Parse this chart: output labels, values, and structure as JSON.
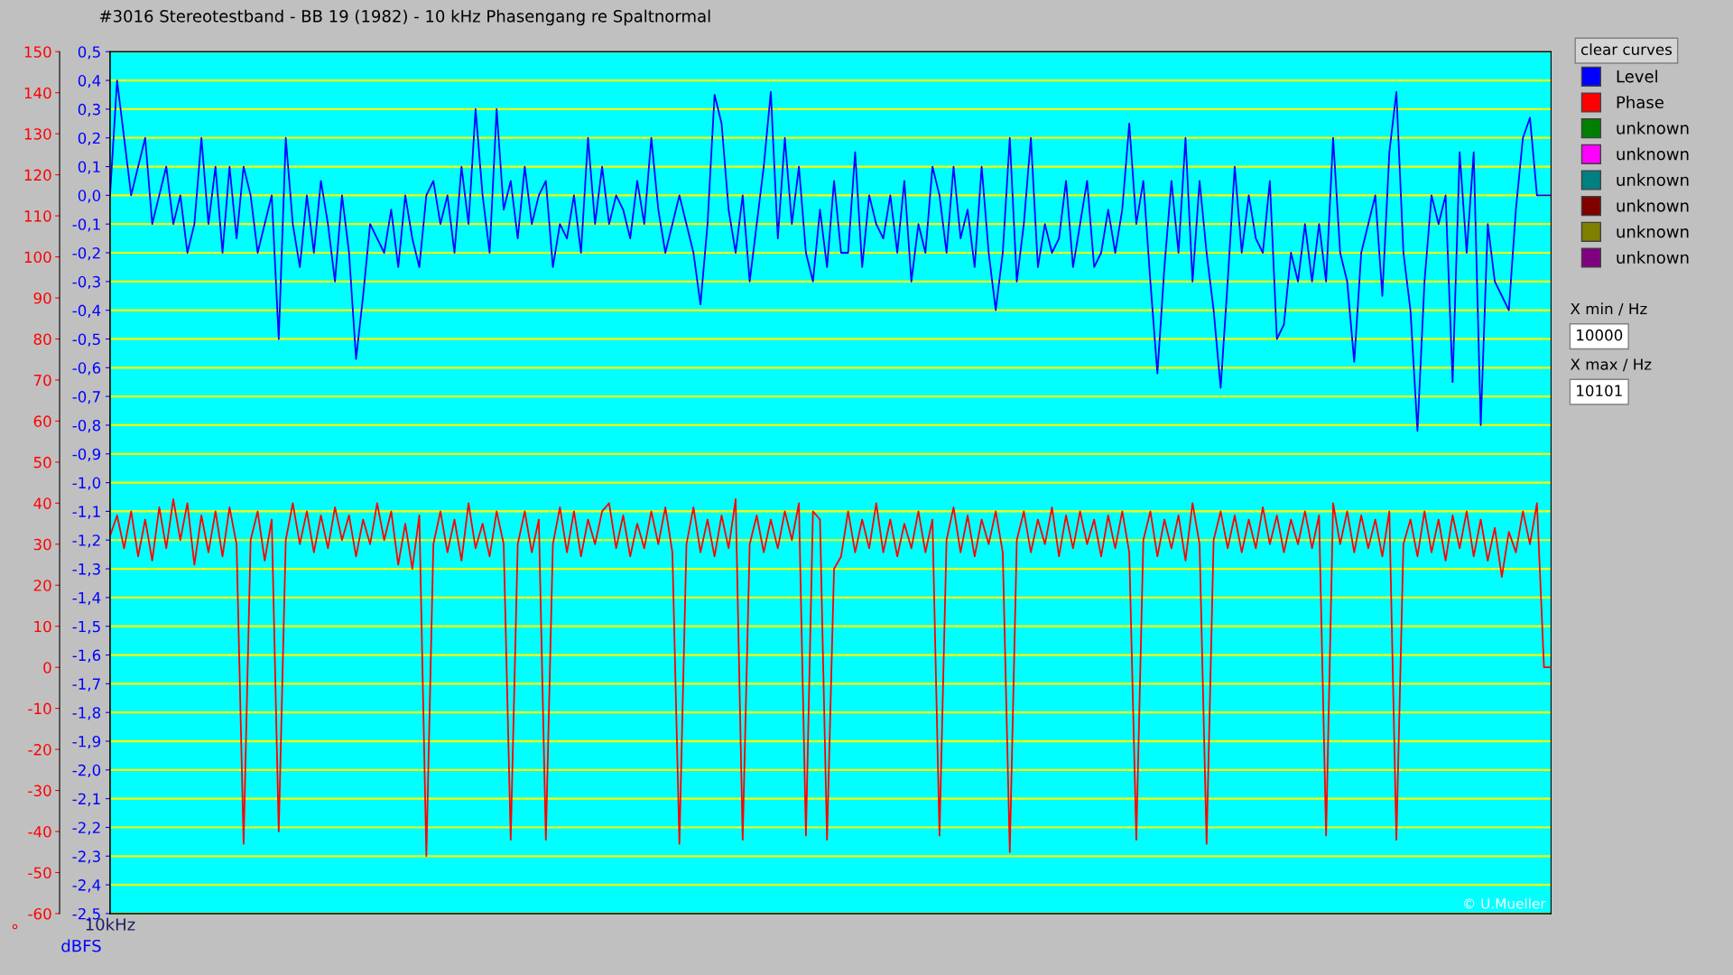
{
  "chart_data": {
    "type": "line",
    "title": "#3016 Stereotestband - BB 19 (1982) - 10 kHz Phasengang re Spaltnormal",
    "ylabel": "dBFS",
    "y2label": "°",
    "categories": [
      "10kHz",
      null,
      null,
      null,
      null,
      null,
      null,
      null,
      null,
      null,
      null,
      null,
      null,
      null,
      null,
      null,
      null,
      null,
      null,
      null,
      null,
      null,
      null,
      null,
      null,
      null,
      null,
      null,
      null,
      null,
      null,
      null,
      null,
      null,
      null,
      null,
      null,
      null,
      null,
      null,
      null,
      null,
      null,
      null,
      null,
      null,
      null,
      null,
      null,
      null,
      null,
      null,
      null,
      null,
      null,
      null,
      null,
      null,
      null,
      null,
      null,
      null,
      null,
      null,
      null,
      null,
      null,
      null,
      null,
      null,
      null,
      null,
      null,
      null,
      null,
      null,
      null,
      null,
      null,
      null,
      null,
      null,
      null,
      null,
      null,
      null,
      null,
      null,
      null,
      null,
      null,
      null,
      null,
      null,
      null,
      null,
      null,
      null,
      null,
      null,
      null,
      null,
      null,
      null,
      null,
      null,
      null,
      null,
      null,
      null,
      null,
      null,
      null,
      null,
      null,
      null,
      null,
      null,
      null,
      null,
      null,
      null,
      null,
      null,
      null,
      null,
      null,
      null,
      null,
      null,
      null,
      null,
      null,
      null,
      null,
      null,
      null,
      null,
      null,
      null,
      null,
      null,
      null,
      null,
      null,
      null,
      null,
      null,
      null,
      null,
      null,
      null,
      null,
      null,
      null,
      null,
      null,
      null,
      null,
      null,
      null,
      null,
      null,
      null,
      null,
      null,
      null,
      null,
      null,
      null,
      null,
      null,
      null,
      null,
      null,
      null,
      null,
      null,
      null,
      null,
      null,
      null,
      null,
      null,
      null,
      null,
      null,
      null,
      null,
      null,
      null,
      null,
      null,
      null,
      null,
      null,
      null,
      null,
      null,
      null,
      null,
      null,
      null,
      null,
      null,
      null
    ],
    "ylim": [
      -2.5,
      0.5
    ],
    "yticks": [
      {
        "value": 0.5,
        "label": "0,5"
      },
      {
        "value": 0.4,
        "label": "0,4"
      },
      {
        "value": 0.3,
        "label": "0,3"
      },
      {
        "value": 0.2,
        "label": "0,2"
      },
      {
        "value": 0.1,
        "label": "0,1"
      },
      {
        "value": 0.0,
        "label": "0,0"
      },
      {
        "value": -0.1,
        "label": "-0,1"
      },
      {
        "value": -0.2,
        "label": "-0,2"
      },
      {
        "value": -0.3,
        "label": "-0,3"
      },
      {
        "value": -0.4,
        "label": "-0,4"
      },
      {
        "value": -0.5,
        "label": "-0,5"
      },
      {
        "value": -0.6,
        "label": "-0,6"
      },
      {
        "value": -0.7,
        "label": "-0,7"
      },
      {
        "value": -0.8,
        "label": "-0,8"
      },
      {
        "value": -0.9,
        "label": "-0,9"
      },
      {
        "value": -1.0,
        "label": "-1,0"
      },
      {
        "value": -1.1,
        "label": "-1,1"
      },
      {
        "value": -1.2,
        "label": "-1,2"
      },
      {
        "value": -1.3,
        "label": "-1,3"
      },
      {
        "value": -1.4,
        "label": "-1,4"
      },
      {
        "value": -1.5,
        "label": "-1,5"
      },
      {
        "value": -1.6,
        "label": "-1,6"
      },
      {
        "value": -1.7,
        "label": "-1,7"
      },
      {
        "value": -1.8,
        "label": "-1,8"
      },
      {
        "value": -1.9,
        "label": "-1,9"
      },
      {
        "value": -2.0,
        "label": "-2,0"
      },
      {
        "value": -2.1,
        "label": "-2,1"
      },
      {
        "value": -2.2,
        "label": "-2,2"
      },
      {
        "value": -2.3,
        "label": "-2,3"
      },
      {
        "value": -2.4,
        "label": "-2,4"
      },
      {
        "value": -2.5,
        "label": "-2,5"
      }
    ],
    "y2lim": [
      -60,
      150
    ],
    "y2ticks": [
      150,
      140,
      130,
      120,
      110,
      100,
      90,
      80,
      70,
      60,
      50,
      40,
      30,
      20,
      10,
      0,
      -10,
      -20,
      -30,
      -40,
      -50,
      -60
    ],
    "grid": "y",
    "legend": "right",
    "line_style": "solid",
    "annotations": [
      "© U.Mueller",
      "clear curves",
      "X min / Hz",
      "10000",
      "X max / Hz",
      "10101"
    ],
    "series": [
      {
        "name": "Level",
        "color": "#0000ff",
        "values": [
          0.0,
          0.4,
          0.2,
          0.0,
          0.1,
          0.2,
          -0.1,
          0.0,
          0.1,
          -0.1,
          0.0,
          -0.2,
          -0.1,
          0.2,
          -0.1,
          0.1,
          -0.2,
          0.1,
          -0.15,
          0.1,
          0.0,
          -0.2,
          -0.1,
          0.0,
          -0.5,
          0.2,
          -0.1,
          -0.25,
          0.0,
          -0.2,
          0.05,
          -0.1,
          -0.3,
          0.0,
          -0.2,
          -0.57,
          -0.35,
          -0.1,
          -0.15,
          -0.2,
          -0.05,
          -0.25,
          0.0,
          -0.15,
          -0.25,
          0.0,
          0.05,
          -0.1,
          0.0,
          -0.2,
          0.1,
          -0.1,
          0.3,
          0.0,
          -0.2,
          0.3,
          -0.05,
          0.05,
          -0.15,
          0.1,
          -0.1,
          0.0,
          0.05,
          -0.25,
          -0.1,
          -0.15,
          0.0,
          -0.2,
          0.2,
          -0.1,
          0.1,
          -0.1,
          0.0,
          -0.05,
          -0.15,
          0.05,
          -0.1,
          0.2,
          -0.05,
          -0.2,
          -0.1,
          0.0,
          -0.1,
          -0.2,
          -0.38,
          -0.1,
          0.35,
          0.25,
          -0.05,
          -0.2,
          0.0,
          -0.3,
          -0.1,
          0.1,
          0.36,
          -0.15,
          0.2,
          -0.1,
          0.1,
          -0.2,
          -0.3,
          -0.05,
          -0.25,
          0.05,
          -0.2,
          -0.2,
          0.15,
          -0.25,
          0.0,
          -0.1,
          -0.15,
          0.0,
          -0.2,
          0.05,
          -0.3,
          -0.1,
          -0.2,
          0.1,
          0.0,
          -0.2,
          0.1,
          -0.15,
          -0.05,
          -0.25,
          0.1,
          -0.2,
          -0.4,
          -0.2,
          0.2,
          -0.3,
          -0.1,
          0.2,
          -0.25,
          -0.1,
          -0.2,
          -0.15,
          0.05,
          -0.25,
          -0.1,
          0.05,
          -0.25,
          -0.2,
          -0.05,
          -0.2,
          -0.05,
          0.25,
          -0.1,
          0.05,
          -0.3,
          -0.62,
          -0.25,
          0.05,
          -0.2,
          0.2,
          -0.3,
          0.05,
          -0.2,
          -0.4,
          -0.67,
          -0.3,
          0.1,
          -0.2,
          0.0,
          -0.15,
          -0.2,
          0.05,
          -0.5,
          -0.45,
          -0.2,
          -0.3,
          -0.1,
          -0.3,
          -0.1,
          -0.3,
          0.2,
          -0.2,
          -0.3,
          -0.58,
          -0.2,
          -0.1,
          0.0,
          -0.35,
          0.15,
          0.36,
          -0.2,
          -0.4,
          -0.82,
          -0.3,
          0.0,
          -0.1,
          0.0,
          -0.65,
          0.15,
          -0.2,
          0.15,
          -0.8,
          -0.1,
          -0.3,
          -0.35,
          -0.4,
          -0.05,
          0.2,
          0.27,
          0.0,
          0.0,
          0.0
        ]
      },
      {
        "name": "Phase",
        "color": "#ff0000",
        "axis": "y2",
        "values": [
          32,
          37,
          29,
          38,
          27,
          36,
          26,
          39,
          29,
          41,
          31,
          40,
          25,
          37,
          28,
          38,
          27,
          39,
          30,
          -43,
          31,
          38,
          26,
          36,
          -40,
          31,
          40,
          30,
          38,
          28,
          37,
          29,
          39,
          31,
          37,
          27,
          36,
          30,
          40,
          31,
          38,
          25,
          35,
          24,
          37,
          -46,
          30,
          38,
          28,
          36,
          26,
          40,
          29,
          35,
          27,
          38,
          30,
          -42,
          30,
          38,
          28,
          36,
          -42,
          30,
          39,
          28,
          38,
          27,
          36,
          30,
          38,
          40,
          29,
          37,
          27,
          35,
          29,
          38,
          30,
          39,
          28,
          -43,
          30,
          39,
          28,
          36,
          27,
          37,
          29,
          41,
          -42,
          30,
          37,
          28,
          36,
          29,
          38,
          31,
          40,
          -41,
          38,
          36,
          -42,
          24,
          27,
          38,
          28,
          36,
          29,
          40,
          28,
          36,
          27,
          35,
          29,
          38,
          28,
          36,
          -41,
          31,
          39,
          28,
          37,
          27,
          36,
          30,
          38,
          28,
          -45,
          31,
          38,
          28,
          36,
          30,
          39,
          27,
          37,
          29,
          38,
          30,
          36,
          27,
          37,
          29,
          38,
          28,
          -42,
          31,
          38,
          27,
          36,
          29,
          37,
          26,
          40,
          30,
          -43,
          31,
          38,
          29,
          37,
          28,
          36,
          29,
          39,
          30,
          37,
          28,
          36,
          30,
          38,
          29,
          37,
          -41,
          40,
          30,
          38,
          28,
          37,
          29,
          36,
          27,
          38,
          -42,
          30,
          36,
          27,
          38,
          28,
          36,
          26,
          37,
          29,
          38,
          27,
          36,
          26,
          34,
          22,
          33,
          28,
          38,
          30,
          40,
          0,
          0
        ]
      },
      {
        "name": "unknown",
        "color": "#008000",
        "values": [
          null,
          null,
          null,
          null,
          null,
          null,
          null,
          null,
          null,
          null,
          null,
          null,
          null,
          null,
          null,
          null,
          null,
          null,
          null,
          null,
          null,
          null,
          null,
          null,
          null,
          null,
          null,
          null,
          null,
          null,
          null,
          null,
          null,
          null,
          null,
          null,
          null,
          null,
          null,
          null,
          null,
          null,
          null,
          null,
          null,
          null,
          null,
          null,
          null,
          null,
          null,
          null,
          null,
          null,
          null,
          null,
          null,
          null,
          null,
          null,
          null,
          null,
          null,
          null,
          null,
          null,
          null,
          null,
          null,
          null,
          null,
          null,
          null,
          null,
          null,
          null,
          null,
          null,
          null,
          null,
          null,
          null,
          null,
          null,
          null,
          null,
          null,
          null,
          null,
          null,
          null,
          null,
          null,
          null,
          null,
          null,
          null,
          null,
          null,
          null,
          null,
          null,
          null,
          null,
          null,
          null,
          null,
          null,
          null,
          null,
          null,
          null,
          null,
          null,
          null,
          null,
          null,
          null,
          null,
          null,
          null,
          null,
          null,
          null,
          null,
          null,
          null,
          null,
          null,
          null,
          null,
          null,
          null,
          null,
          null,
          null,
          null,
          null,
          null,
          null,
          null,
          null,
          null,
          null,
          null,
          null,
          null,
          null,
          null,
          null,
          null,
          null,
          null,
          null,
          null,
          null,
          null,
          null,
          null,
          null,
          null,
          null,
          null,
          null,
          null,
          null,
          null,
          null,
          null,
          null,
          null,
          null,
          null,
          null,
          null,
          null,
          null,
          null,
          null,
          null,
          null,
          null,
          null,
          null,
          null,
          null,
          null,
          null,
          null,
          null,
          null,
          null,
          null,
          null,
          null,
          null,
          null,
          null,
          null,
          null,
          null,
          null,
          null,
          null,
          null,
          null
        ]
      },
      {
        "name": "unknown",
        "color": "#ff00ff",
        "values": [
          null,
          null,
          null,
          null,
          null,
          null,
          null,
          null,
          null,
          null,
          null,
          null,
          null,
          null,
          null,
          null,
          null,
          null,
          null,
          null,
          null,
          null,
          null,
          null,
          null,
          null,
          null,
          null,
          null,
          null,
          null,
          null,
          null,
          null,
          null,
          null,
          null,
          null,
          null,
          null,
          null,
          null,
          null,
          null,
          null,
          null,
          null,
          null,
          null,
          null,
          null,
          null,
          null,
          null,
          null,
          null,
          null,
          null,
          null,
          null,
          null,
          null,
          null,
          null,
          null,
          null,
          null,
          null,
          null,
          null,
          null,
          null,
          null,
          null,
          null,
          null,
          null,
          null,
          null,
          null,
          null,
          null,
          null,
          null,
          null,
          null,
          null,
          null,
          null,
          null,
          null,
          null,
          null,
          null,
          null,
          null,
          null,
          null,
          null,
          null,
          null,
          null,
          null,
          null,
          null,
          null,
          null,
          null,
          null,
          null,
          null,
          null,
          null,
          null,
          null,
          null,
          null,
          null,
          null,
          null,
          null,
          null,
          null,
          null,
          null,
          null,
          null,
          null,
          null,
          null,
          null,
          null,
          null,
          null,
          null,
          null,
          null,
          null,
          null,
          null,
          null,
          null,
          null,
          null,
          null,
          null,
          null,
          null,
          null,
          null,
          null,
          null,
          null,
          null,
          null,
          null,
          null,
          null,
          null,
          null,
          null,
          null,
          null,
          null,
          null,
          null,
          null,
          null,
          null,
          null,
          null,
          null,
          null,
          null,
          null,
          null,
          null,
          null,
          null,
          null,
          null,
          null,
          null,
          null,
          null,
          null,
          null,
          null,
          null,
          null,
          null,
          null,
          null,
          null,
          null,
          null,
          null,
          null,
          null,
          null,
          null,
          null,
          null,
          null,
          null,
          null
        ]
      },
      {
        "name": "unknown",
        "color": "#008080",
        "values": [
          null,
          null,
          null,
          null,
          null,
          null,
          null,
          null,
          null,
          null,
          null,
          null,
          null,
          null,
          null,
          null,
          null,
          null,
          null,
          null,
          null,
          null,
          null,
          null,
          null,
          null,
          null,
          null,
          null,
          null,
          null,
          null,
          null,
          null,
          null,
          null,
          null,
          null,
          null,
          null,
          null,
          null,
          null,
          null,
          null,
          null,
          null,
          null,
          null,
          null,
          null,
          null,
          null,
          null,
          null,
          null,
          null,
          null,
          null,
          null,
          null,
          null,
          null,
          null,
          null,
          null,
          null,
          null,
          null,
          null,
          null,
          null,
          null,
          null,
          null,
          null,
          null,
          null,
          null,
          null,
          null,
          null,
          null,
          null,
          null,
          null,
          null,
          null,
          null,
          null,
          null,
          null,
          null,
          null,
          null,
          null,
          null,
          null,
          null,
          null,
          null,
          null,
          null,
          null,
          null,
          null,
          null,
          null,
          null,
          null,
          null,
          null,
          null,
          null,
          null,
          null,
          null,
          null,
          null,
          null,
          null,
          null,
          null,
          null,
          null,
          null,
          null,
          null,
          null,
          null,
          null,
          null,
          null,
          null,
          null,
          null,
          null,
          null,
          null,
          null,
          null,
          null,
          null,
          null,
          null,
          null,
          null,
          null,
          null,
          null,
          null,
          null,
          null,
          null,
          null,
          null,
          null,
          null,
          null,
          null,
          null,
          null,
          null,
          null,
          null,
          null,
          null,
          null,
          null,
          null,
          null,
          null,
          null,
          null,
          null,
          null,
          null,
          null,
          null,
          null,
          null,
          null,
          null,
          null,
          null,
          null,
          null,
          null,
          null,
          null,
          null,
          null,
          null,
          null,
          null,
          null,
          null,
          null,
          null,
          null,
          null,
          null,
          null,
          null,
          null,
          null
        ]
      },
      {
        "name": "unknown",
        "color": "#800000",
        "values": [
          null,
          null,
          null,
          null,
          null,
          null,
          null,
          null,
          null,
          null,
          null,
          null,
          null,
          null,
          null,
          null,
          null,
          null,
          null,
          null,
          null,
          null,
          null,
          null,
          null,
          null,
          null,
          null,
          null,
          null,
          null,
          null,
          null,
          null,
          null,
          null,
          null,
          null,
          null,
          null,
          null,
          null,
          null,
          null,
          null,
          null,
          null,
          null,
          null,
          null,
          null,
          null,
          null,
          null,
          null,
          null,
          null,
          null,
          null,
          null,
          null,
          null,
          null,
          null,
          null,
          null,
          null,
          null,
          null,
          null,
          null,
          null,
          null,
          null,
          null,
          null,
          null,
          null,
          null,
          null,
          null,
          null,
          null,
          null,
          null,
          null,
          null,
          null,
          null,
          null,
          null,
          null,
          null,
          null,
          null,
          null,
          null,
          null,
          null,
          null,
          null,
          null,
          null,
          null,
          null,
          null,
          null,
          null,
          null,
          null,
          null,
          null,
          null,
          null,
          null,
          null,
          null,
          null,
          null,
          null,
          null,
          null,
          null,
          null,
          null,
          null,
          null,
          null,
          null,
          null,
          null,
          null,
          null,
          null,
          null,
          null,
          null,
          null,
          null,
          null,
          null,
          null,
          null,
          null,
          null,
          null,
          null,
          null,
          null,
          null,
          null,
          null,
          null,
          null,
          null,
          null,
          null,
          null,
          null,
          null,
          null,
          null,
          null,
          null,
          null,
          null,
          null,
          null,
          null,
          null,
          null,
          null,
          null,
          null,
          null,
          null,
          null,
          null,
          null,
          null,
          null,
          null,
          null,
          null,
          null,
          null,
          null,
          null,
          null,
          null,
          null,
          null,
          null,
          null,
          null,
          null,
          null,
          null,
          null,
          null,
          null,
          null,
          null,
          null,
          null,
          null
        ]
      },
      {
        "name": "unknown",
        "color": "#808000",
        "values": [
          null,
          null,
          null,
          null,
          null,
          null,
          null,
          null,
          null,
          null,
          null,
          null,
          null,
          null,
          null,
          null,
          null,
          null,
          null,
          null,
          null,
          null,
          null,
          null,
          null,
          null,
          null,
          null,
          null,
          null,
          null,
          null,
          null,
          null,
          null,
          null,
          null,
          null,
          null,
          null,
          null,
          null,
          null,
          null,
          null,
          null,
          null,
          null,
          null,
          null,
          null,
          null,
          null,
          null,
          null,
          null,
          null,
          null,
          null,
          null,
          null,
          null,
          null,
          null,
          null,
          null,
          null,
          null,
          null,
          null,
          null,
          null,
          null,
          null,
          null,
          null,
          null,
          null,
          null,
          null,
          null,
          null,
          null,
          null,
          null,
          null,
          null,
          null,
          null,
          null,
          null,
          null,
          null,
          null,
          null,
          null,
          null,
          null,
          null,
          null,
          null,
          null,
          null,
          null,
          null,
          null,
          null,
          null,
          null,
          null,
          null,
          null,
          null,
          null,
          null,
          null,
          null,
          null,
          null,
          null,
          null,
          null,
          null,
          null,
          null,
          null,
          null,
          null,
          null,
          null,
          null,
          null,
          null,
          null,
          null,
          null,
          null,
          null,
          null,
          null,
          null,
          null,
          null,
          null,
          null,
          null,
          null,
          null,
          null,
          null,
          null,
          null,
          null,
          null,
          null,
          null,
          null,
          null,
          null,
          null,
          null,
          null,
          null,
          null,
          null,
          null,
          null,
          null,
          null,
          null,
          null,
          null,
          null,
          null,
          null,
          null,
          null,
          null,
          null,
          null,
          null,
          null,
          null,
          null,
          null,
          null,
          null,
          null,
          null,
          null,
          null,
          null,
          null,
          null,
          null,
          null,
          null,
          null,
          null,
          null,
          null,
          null,
          null,
          null,
          null,
          null
        ]
      },
      {
        "name": "unknown",
        "color": "#800080",
        "values": [
          null,
          null,
          null,
          null,
          null,
          null,
          null,
          null,
          null,
          null,
          null,
          null,
          null,
          null,
          null,
          null,
          null,
          null,
          null,
          null,
          null,
          null,
          null,
          null,
          null,
          null,
          null,
          null,
          null,
          null,
          null,
          null,
          null,
          null,
          null,
          null,
          null,
          null,
          null,
          null,
          null,
          null,
          null,
          null,
          null,
          null,
          null,
          null,
          null,
          null,
          null,
          null,
          null,
          null,
          null,
          null,
          null,
          null,
          null,
          null,
          null,
          null,
          null,
          null,
          null,
          null,
          null,
          null,
          null,
          null,
          null,
          null,
          null,
          null,
          null,
          null,
          null,
          null,
          null,
          null,
          null,
          null,
          null,
          null,
          null,
          null,
          null,
          null,
          null,
          null,
          null,
          null,
          null,
          null,
          null,
          null,
          null,
          null,
          null,
          null,
          null,
          null,
          null,
          null,
          null,
          null,
          null,
          null,
          null,
          null,
          null,
          null,
          null,
          null,
          null,
          null,
          null,
          null,
          null,
          null,
          null,
          null,
          null,
          null,
          null,
          null,
          null,
          null,
          null,
          null,
          null,
          null,
          null,
          null,
          null,
          null,
          null,
          null,
          null,
          null,
          null,
          null,
          null,
          null,
          null,
          null,
          null,
          null,
          null,
          null,
          null,
          null,
          null,
          null,
          null,
          null,
          null,
          null,
          null,
          null,
          null,
          null,
          null,
          null,
          null,
          null,
          null,
          null,
          null,
          null,
          null,
          null,
          null,
          null,
          null,
          null,
          null,
          null,
          null,
          null,
          null,
          null,
          null,
          null,
          null,
          null,
          null,
          null,
          null,
          null,
          null,
          null,
          null,
          null,
          null,
          null,
          null,
          null,
          null,
          null,
          null,
          null,
          null,
          null,
          null,
          null
        ]
      }
    ]
  }
}
